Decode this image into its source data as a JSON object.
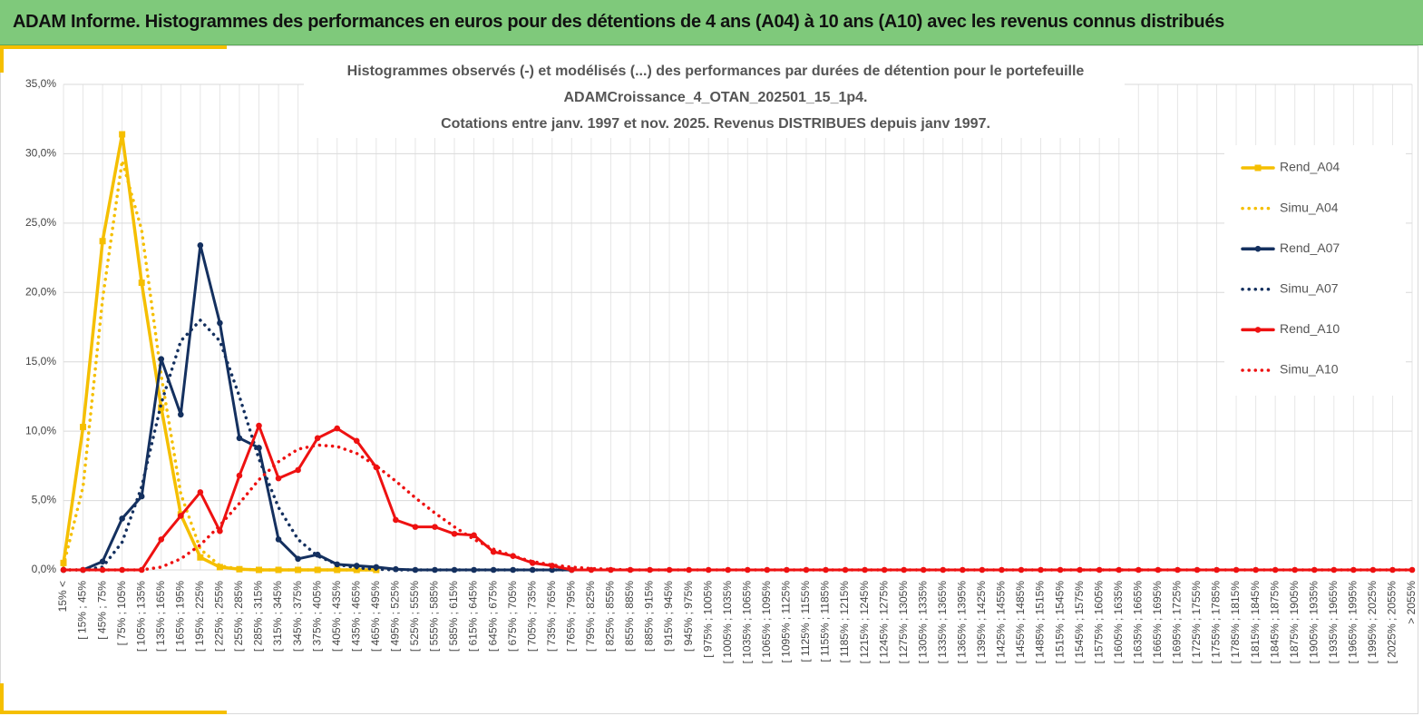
{
  "banner": {
    "title": "ADAM Informe. Histogrammes des performances en euros pour des détentions de 4 ans (A04) à 10 ans (A10) avec les revenus connus distribués"
  },
  "chart_data": {
    "type": "line",
    "title": [
      "Histogrammes observés (-) et modélisés (...) des performances par durées de détention pour le portefeuille",
      "ADAMCroissance_4_OTAN_202501_15_1p4.",
      "Cotations entre janv. 1997 et nov. 2025. Revenus DISTRIBUES depuis janv 1997."
    ],
    "categories": [
      "15% <",
      "[ 15% ; 45%",
      "[ 45% ; 75%",
      "[ 75% ; 105%",
      "[ 105% ; 135%",
      "[ 135% ; 165%",
      "[ 165% ; 195%",
      "[ 195% ; 225%",
      "[ 225% ; 255%",
      "[ 255% ; 285%",
      "[ 285% ; 315%",
      "[ 315% ; 345%",
      "[ 345% ; 375%",
      "[ 375% ; 405%",
      "[ 405% ; 435%",
      "[ 435% ; 465%",
      "[ 465% ; 495%",
      "[ 495% ; 525%",
      "[ 525% ; 555%",
      "[ 555% ; 585%",
      "[ 585% ; 615%",
      "[ 615% ; 645%",
      "[ 645% ; 675%",
      "[ 675% ; 705%",
      "[ 705% ; 735%",
      "[ 735% ; 765%",
      "[ 765% ; 795%",
      "[ 795% ; 825%",
      "[ 825% ; 855%",
      "[ 855% ; 885%",
      "[ 885% ; 915%",
      "[ 915% ; 945%",
      "[ 945% ; 975%",
      "[ 975% ; 1005%",
      "[ 1005% ; 1035%",
      "[ 1035% ; 1065%",
      "[ 1065% ; 1095%",
      "[ 1095% ; 1125%",
      "[ 1125% ; 1155%",
      "[ 1155% ; 1185%",
      "[ 1185% ; 1215%",
      "[ 1215% ; 1245%",
      "[ 1245% ; 1275%",
      "[ 1275% ; 1305%",
      "[ 1305% ; 1335%",
      "[ 1335% ; 1365%",
      "[ 1365% ; 1395%",
      "[ 1395% ; 1425%",
      "[ 1425% ; 1455%",
      "[ 1455% ; 1485%",
      "[ 1485% ; 1515%",
      "[ 1515% ; 1545%",
      "[ 1545% ; 1575%",
      "[ 1575% ; 1605%",
      "[ 1605% ; 1635%",
      "[ 1635% ; 1665%",
      "[ 1665% ; 1695%",
      "[ 1695% ; 1725%",
      "[ 1725% ; 1755%",
      "[ 1755% ; 1785%",
      "[ 1785% ; 1815%",
      "[ 1815% ; 1845%",
      "[ 1845% ; 1875%",
      "[ 1875% ; 1905%",
      "[ 1905% ; 1935%",
      "[ 1935% ; 1965%",
      "[ 1965% ; 1995%",
      "[ 1995% ; 2025%",
      "[ 2025% ; 2055%",
      "> 2055%"
    ],
    "series": [
      {
        "name": "Rend_A04",
        "color": "#f5bf00",
        "dash": false,
        "marker": "square",
        "values": [
          0.5,
          10.3,
          23.7,
          31.4,
          20.7,
          11.7,
          4.0,
          0.9,
          0.2,
          0.05,
          0,
          0,
          0,
          0,
          0,
          0,
          0,
          null,
          null,
          null,
          null,
          null,
          null,
          null,
          null,
          null,
          null,
          null,
          null,
          null,
          null,
          null,
          null,
          null,
          null,
          null,
          null,
          null,
          null,
          null,
          null,
          null,
          null,
          null,
          null,
          null,
          null,
          null,
          null,
          null,
          null,
          null,
          null,
          null,
          null,
          null,
          null,
          null,
          null,
          null,
          null,
          null,
          null,
          null,
          null,
          null,
          null,
          null,
          null,
          null
        ]
      },
      {
        "name": "Simu_A04",
        "color": "#f5bf00",
        "dash": true,
        "marker": "none",
        "values": [
          0.3,
          6.0,
          19.5,
          29.5,
          24.5,
          14,
          5.5,
          1.5,
          0.3,
          0.05,
          0,
          0,
          0,
          0,
          0,
          0,
          0,
          null,
          null,
          null,
          null,
          null,
          null,
          null,
          null,
          null,
          null,
          null,
          null,
          null,
          null,
          null,
          null,
          null,
          null,
          null,
          null,
          null,
          null,
          null,
          null,
          null,
          null,
          null,
          null,
          null,
          null,
          null,
          null,
          null,
          null,
          null,
          null,
          null,
          null,
          null,
          null,
          null,
          null,
          null,
          null,
          null,
          null,
          null,
          null,
          null,
          null,
          null,
          null,
          null
        ]
      },
      {
        "name": "Rend_A07",
        "color": "#14305f",
        "dash": false,
        "marker": "circle",
        "values": [
          0,
          0,
          0.6,
          3.7,
          5.3,
          15.2,
          11.2,
          23.4,
          17.8,
          9.5,
          8.8,
          2.2,
          0.8,
          1.1,
          0.4,
          0.3,
          0.2,
          0.05,
          0,
          0,
          0,
          0,
          0,
          0,
          0,
          0,
          0,
          null,
          null,
          null,
          null,
          null,
          null,
          null,
          null,
          null,
          null,
          null,
          null,
          null,
          null,
          null,
          null,
          null,
          null,
          null,
          null,
          null,
          null,
          null,
          null,
          null,
          null,
          null,
          null,
          null,
          null,
          null,
          null,
          null,
          null,
          null,
          null,
          null,
          null,
          null,
          null,
          null,
          null,
          null
        ]
      },
      {
        "name": "Simu_A07",
        "color": "#14305f",
        "dash": true,
        "marker": "none",
        "values": [
          0,
          0,
          0.2,
          2,
          6,
          12,
          16.5,
          18,
          16.5,
          12.5,
          8,
          4.5,
          2.2,
          1,
          0.4,
          0.15,
          0.05,
          0,
          0,
          0,
          0,
          0,
          0,
          0,
          0,
          0,
          0,
          null,
          null,
          null,
          null,
          null,
          null,
          null,
          null,
          null,
          null,
          null,
          null,
          null,
          null,
          null,
          null,
          null,
          null,
          null,
          null,
          null,
          null,
          null,
          null,
          null,
          null,
          null,
          null,
          null,
          null,
          null,
          null,
          null,
          null,
          null,
          null,
          null,
          null,
          null,
          null,
          null,
          null,
          null
        ]
      },
      {
        "name": "Rend_A10",
        "color": "#ee1111",
        "dash": false,
        "marker": "circle",
        "values": [
          0,
          0,
          0,
          0,
          0,
          2.2,
          3.9,
          5.6,
          2.8,
          6.8,
          10.4,
          6.6,
          7.2,
          9.5,
          10.2,
          9.3,
          7.4,
          3.6,
          3.1,
          3.1,
          2.6,
          2.5,
          1.3,
          1.0,
          0.5,
          0.3,
          0,
          0,
          0,
          0,
          0,
          0,
          0,
          0,
          0,
          0,
          0,
          0,
          0,
          0,
          0,
          0,
          0,
          0,
          0,
          0,
          0,
          0,
          0,
          0,
          0,
          0,
          0,
          0,
          0,
          0,
          0,
          0,
          0,
          0,
          0,
          0,
          0,
          0,
          0,
          0,
          0,
          0,
          0,
          0
        ]
      },
      {
        "name": "Simu_A10",
        "color": "#ee1111",
        "dash": true,
        "marker": "none",
        "values": [
          0,
          0,
          0,
          0,
          0,
          0.2,
          0.8,
          1.8,
          3.2,
          4.8,
          6.5,
          7.8,
          8.7,
          9.0,
          8.9,
          8.4,
          7.5,
          6.4,
          5.2,
          4.1,
          3.1,
          2.2,
          1.5,
          1.0,
          0.6,
          0.35,
          0.2,
          0.1,
          0.05,
          0,
          0,
          0,
          0,
          0,
          0,
          0,
          0,
          0,
          0,
          0,
          0,
          0,
          0,
          0,
          0,
          0,
          0,
          0,
          0,
          0,
          0,
          0,
          0,
          0,
          0,
          0,
          0,
          0,
          0,
          0,
          0,
          0,
          0,
          0,
          0,
          0,
          0,
          0,
          0,
          0
        ]
      }
    ],
    "ylim": [
      0,
      35
    ],
    "yticks": [
      {
        "value": 0,
        "label": "0,0%"
      },
      {
        "value": 5,
        "label": "5,0%"
      },
      {
        "value": 10,
        "label": "10,0%"
      },
      {
        "value": 15,
        "label": "15,0%"
      },
      {
        "value": 20,
        "label": "20,0%"
      },
      {
        "value": 25,
        "label": "25,0%"
      },
      {
        "value": 30,
        "label": "30,0%"
      },
      {
        "value": 35,
        "label": "35,0%"
      }
    ],
    "grid": true,
    "legend": "right"
  }
}
